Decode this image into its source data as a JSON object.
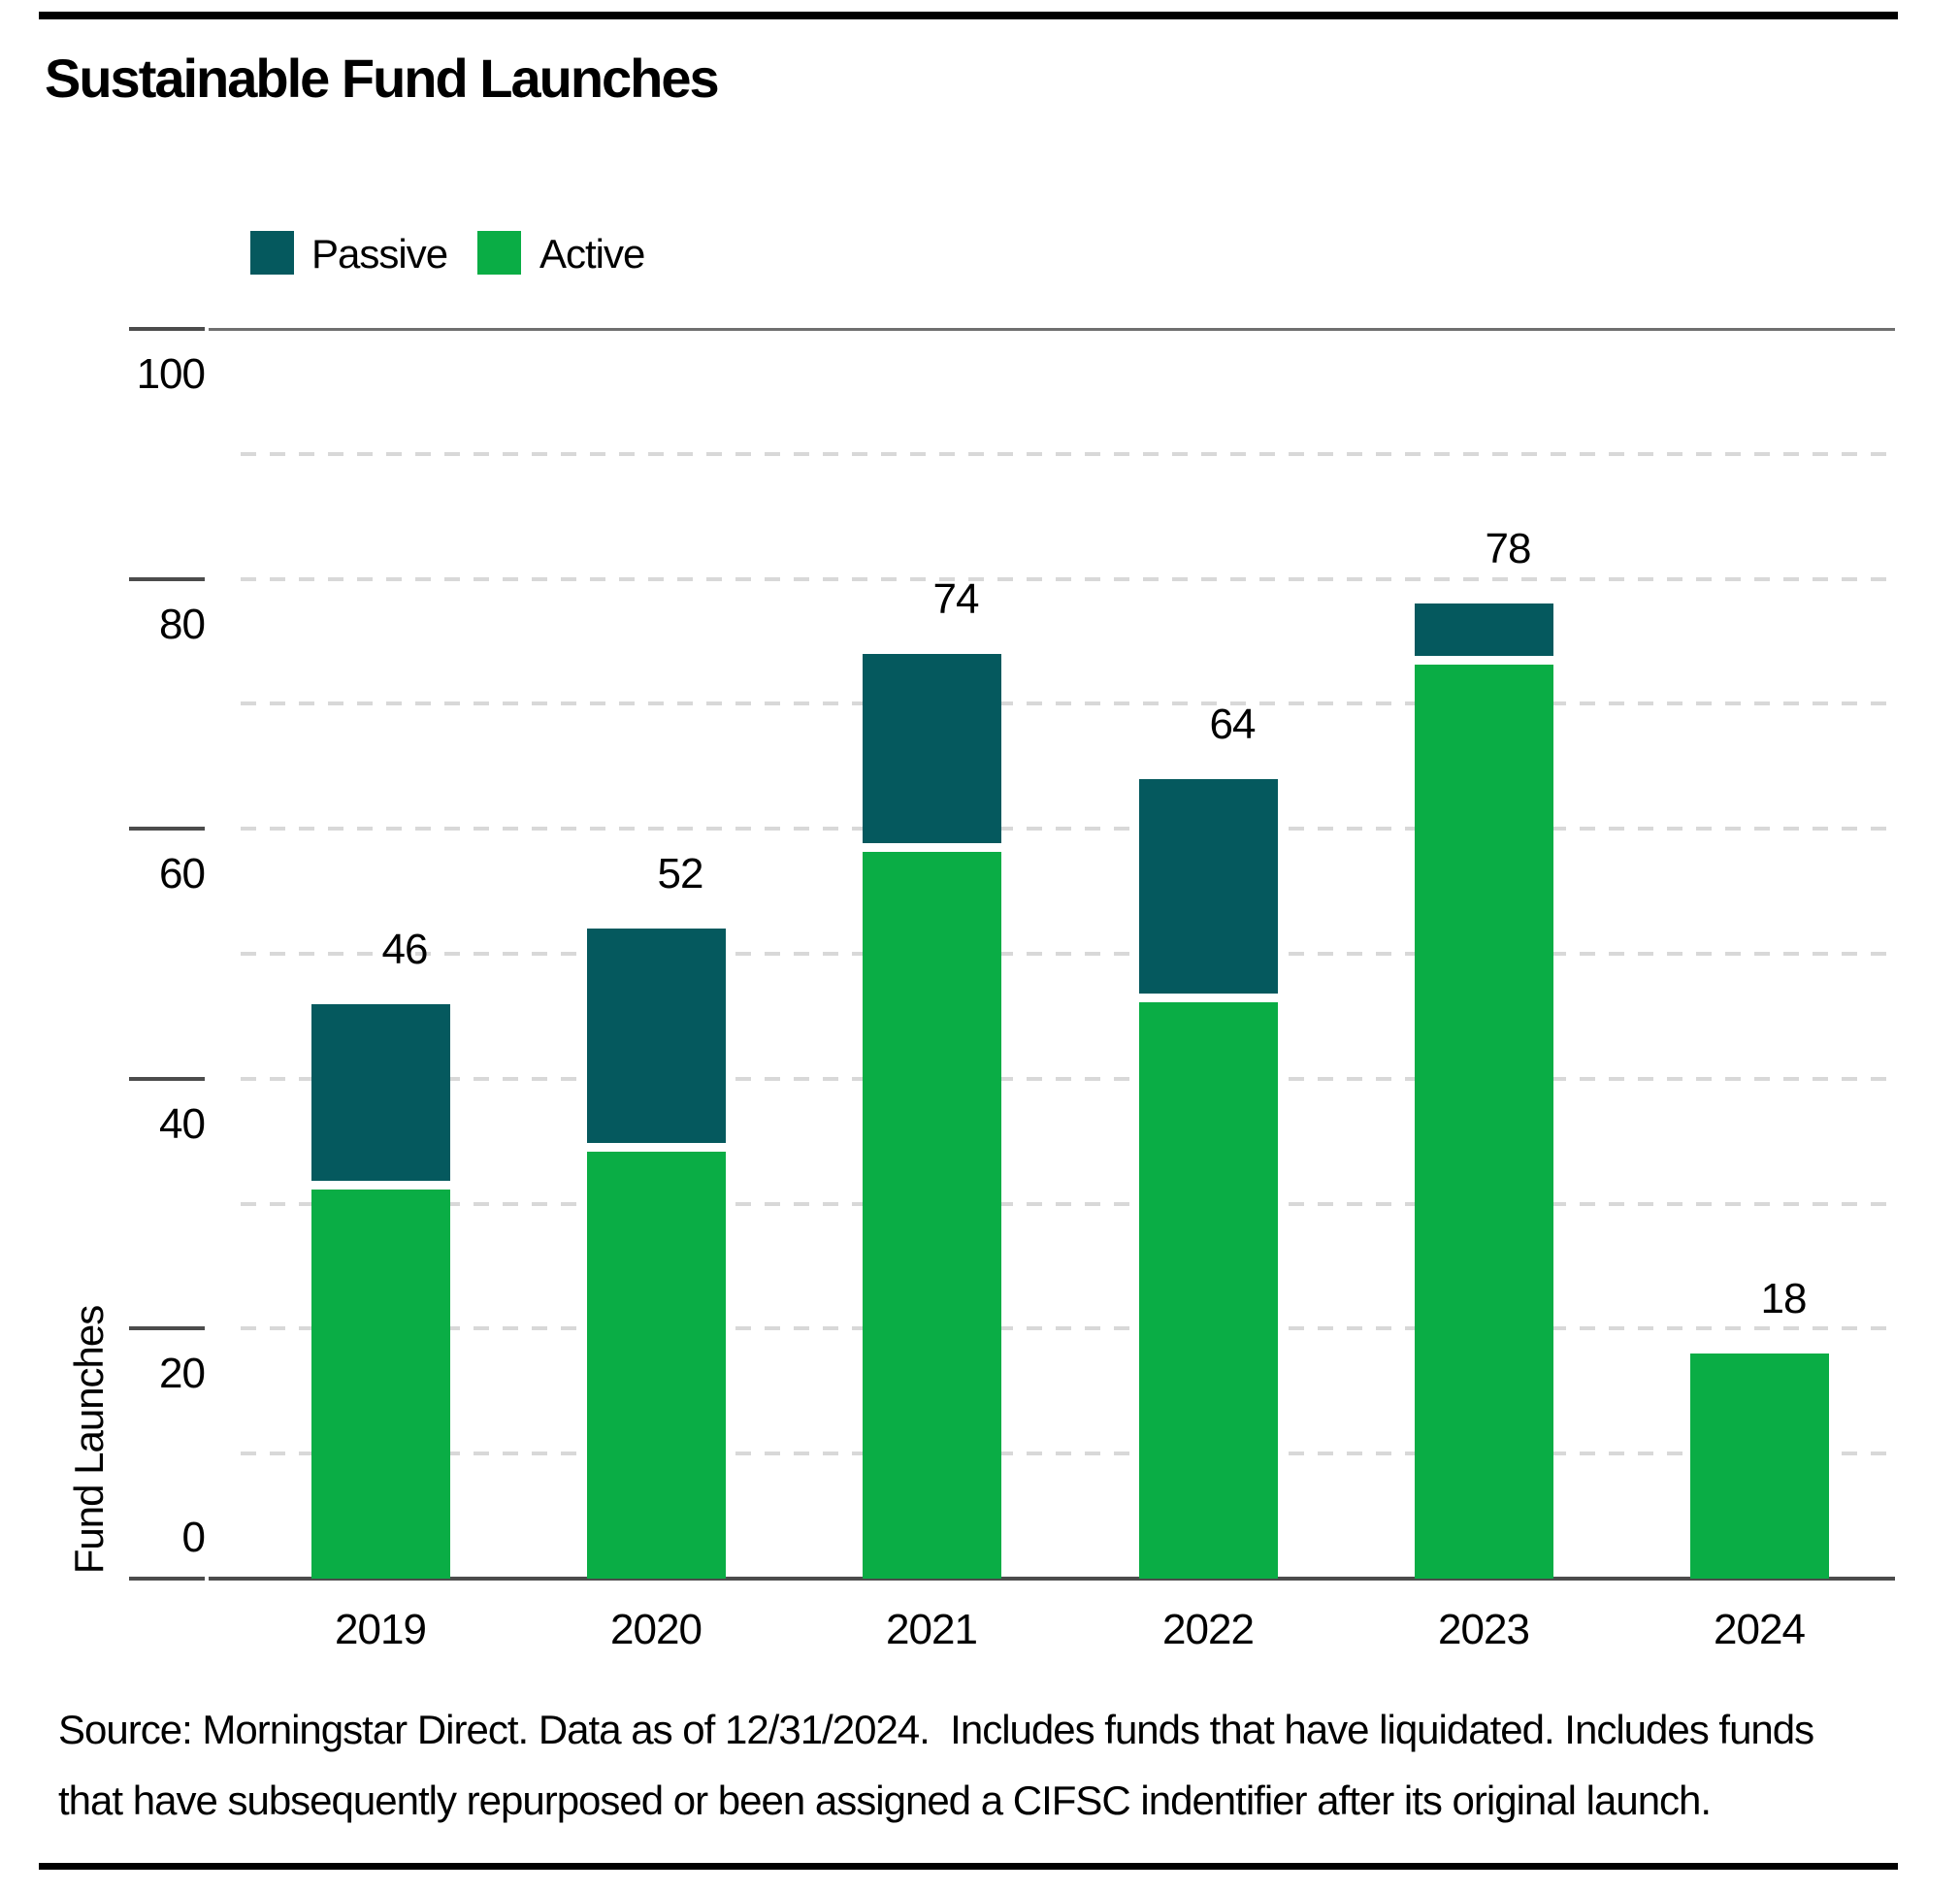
{
  "title": "Sustainable Fund Launches",
  "legend": {
    "passive_label": "Passive",
    "active_label": "Active",
    "passive_color": "#05595e",
    "active_color": "#0aad45"
  },
  "chart_data": {
    "type": "bar",
    "stacked": true,
    "title": "Sustainable Fund Launches",
    "categories": [
      "2019",
      "2020",
      "2021",
      "2022",
      "2023",
      "2024"
    ],
    "series": [
      {
        "name": "Active",
        "color": "#0aad45",
        "values": [
          32,
          35,
          59,
          47,
          74,
          18
        ]
      },
      {
        "name": "Passive",
        "color": "#05595e",
        "values": [
          14,
          17,
          15,
          17,
          4,
          0
        ]
      }
    ],
    "totals": [
      46,
      52,
      74,
      64,
      78,
      18
    ],
    "xlabel": "",
    "ylabel": "Fund Launches",
    "ylim": [
      0,
      100
    ],
    "yticks": [
      0,
      20,
      40,
      60,
      80,
      100
    ],
    "gridlines_every": 10,
    "grid": "dashed horizontal",
    "legend_position": "top-left"
  },
  "footnote": {
    "line1": "Source: Morningstar Direct. Data as of 12/31/2024.  Includes funds that have liquidated. Includes funds",
    "line2": "that have subsequently repurposed or been assigned a CIFSC indentifier after its original launch."
  }
}
